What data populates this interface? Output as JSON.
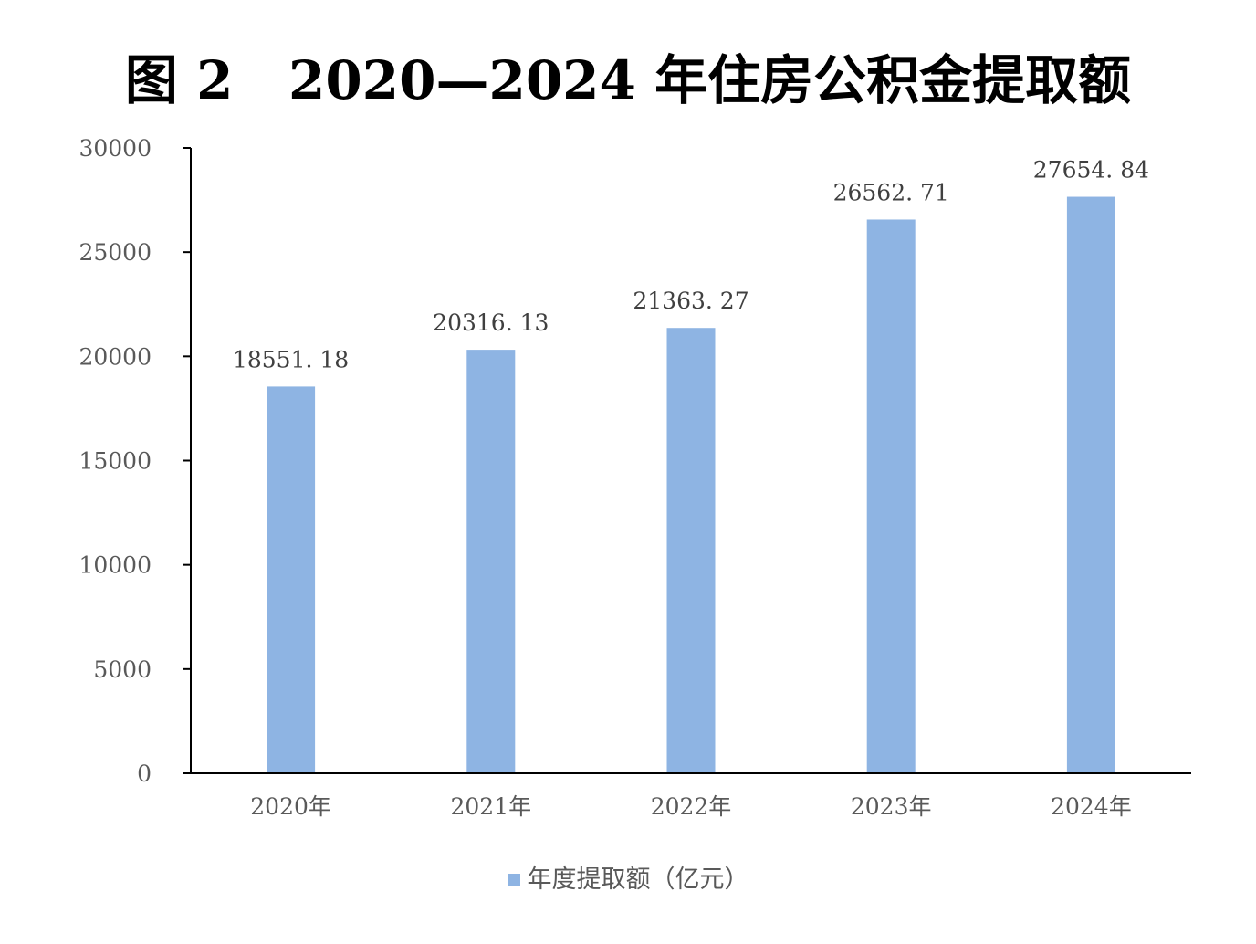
{
  "chart_data": {
    "type": "bar",
    "title": "图 2   2020—2024 年住房公积金提取额",
    "categories": [
      "2020年",
      "2021年",
      "2022年",
      "2023年",
      "2024年"
    ],
    "series": [
      {
        "name": "年度提取额（亿元）",
        "values": [
          18551.18,
          20316.13,
          21363.27,
          26562.71,
          27654.84
        ],
        "value_labels": [
          "18551. 18",
          "20316. 13",
          "21363. 27",
          "26562. 71",
          "27654. 84"
        ],
        "color": "#8EB4E3"
      }
    ],
    "yticks": [
      "0",
      "5000",
      "10000",
      "15000",
      "20000",
      "25000",
      "30000"
    ],
    "ylim": [
      0,
      30000
    ],
    "grid": false,
    "legend": "bottom-center",
    "axis_color": "#000000"
  }
}
